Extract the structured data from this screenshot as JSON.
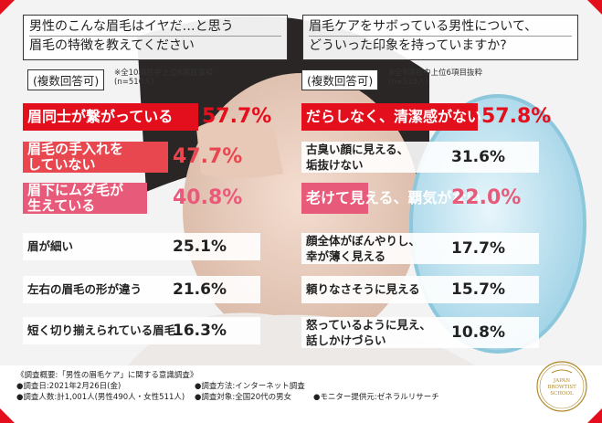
{
  "question_left": {
    "line1": "男性のこんな眉毛はイヤだ…と思う",
    "line2": "眉毛の特徴を教えてください",
    "multi": "(複数回答可)",
    "note1": "※全10項目中上位6項目抜粋",
    "note2": "(n=510人)"
  },
  "question_right": {
    "line1": "眉毛ケアをサボっている男性について、",
    "line2": "どういった印象を持っていますか?",
    "multi": "(複数回答可)",
    "note1": "※全9項目中上位6項目抜粋",
    "note2": "(n=510人)"
  },
  "chart_data": [
    {
      "type": "bar",
      "orientation": "horizontal",
      "categories": [
        "眉同士が繋がっている",
        "眉毛の手入れをしていない",
        "眉下にムダ毛が生えている",
        "眉が細い",
        "左右の眉毛の形が違う",
        "短く切り揃えられている眉毛"
      ],
      "label_lines": [
        [
          "眉同士が繋がっている"
        ],
        [
          "眉毛の手入れを",
          "していない"
        ],
        [
          "眉下にムダ毛が",
          "生えている"
        ],
        [
          "眉が細い"
        ],
        [
          "左右の眉毛の形が違う"
        ],
        [
          "短く切り揃えられている眉毛"
        ]
      ],
      "values": [
        57.7,
        47.7,
        40.8,
        25.1,
        21.6,
        16.3
      ],
      "value_labels": [
        "57.7%",
        "47.7%",
        "40.8%",
        "25.1%",
        "21.6%",
        "16.3%"
      ],
      "colors": [
        "#e40f1c",
        "#e8474f",
        "#e85a7a",
        "#ffffff",
        "#ffffff",
        "#ffffff"
      ]
    },
    {
      "type": "bar",
      "orientation": "horizontal",
      "categories": [
        "だらしなく、清潔感がない",
        "古臭い顔に見える、垢抜けない",
        "老けて見える、覇気がない",
        "顔全体がぼんやりし、幸が薄く見える",
        "頼りなさそうに見える",
        "怒っているように見え、話しかけづらい"
      ],
      "label_lines": [
        [
          "だらしなく、清潔感がない"
        ],
        [
          "古臭い顔に見える、",
          "垢抜けない"
        ],
        [
          "老けて見える、覇気がない"
        ],
        [
          "顔全体がぼんやりし、",
          "幸が薄く見える"
        ],
        [
          "頼りなさそうに見える"
        ],
        [
          "怒っているように見え、",
          "話しかけづらい"
        ]
      ],
      "values": [
        57.8,
        31.6,
        22.0,
        17.7,
        15.7,
        10.8
      ],
      "value_labels": [
        "57.8%",
        "31.6%",
        "22.0%",
        "17.7%",
        "15.7%",
        "10.8%"
      ],
      "colors": [
        "#e40f1c",
        "#ffffff",
        "#e85a7a",
        "#ffffff",
        "#ffffff",
        "#ffffff"
      ]
    }
  ],
  "footer": {
    "title": "《調査概要:「男性の眉毛ケア」に関する意識調査》",
    "date": "●調査日:2021年2月26日(金)",
    "method": "●調査方法:インターネット調査",
    "count": "●調査人数:計1,001人(男性490人・女性511人)",
    "target": "●調査対象:全国20代の男女",
    "monitor": "●モニター提供元:ゼネラルリサーチ"
  },
  "logo": {
    "line1": "JAPAN",
    "line2": "BROWTIST",
    "line3": "SCHOOL"
  },
  "colors": {
    "accent_red": "#e40f1c",
    "pink": "#e85a7a",
    "gold": "#b08a2a"
  }
}
